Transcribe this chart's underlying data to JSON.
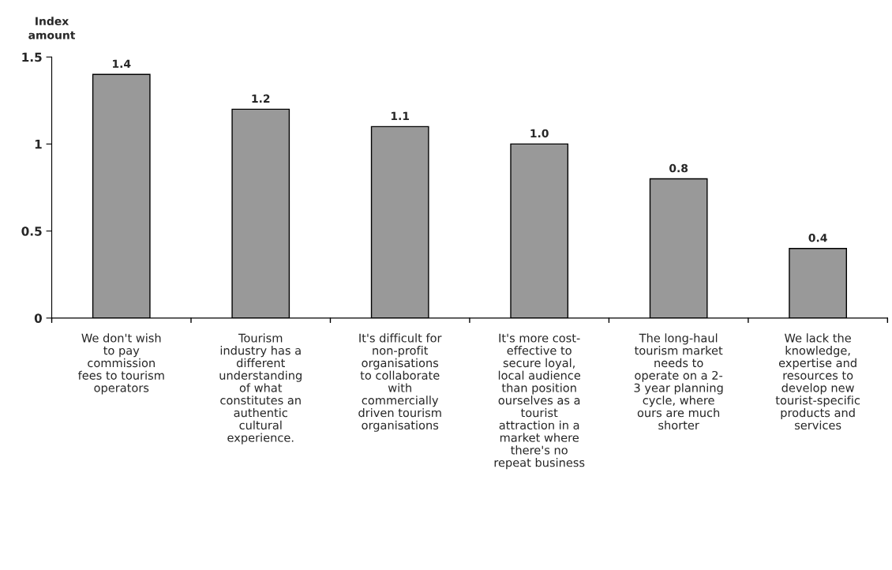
{
  "chart_data": {
    "type": "bar",
    "ylabel": "Index\namount",
    "categories": [
      "We don't wish\nto pay\ncommission\nfees to tourism\noperators",
      "Tourism\nindustry has a\ndifferent\nunderstanding\nof what\nconstitutes an\nauthentic\ncultural\nexperience.",
      "It's difficult for\nnon-profit\norganisations\nto collaborate\nwith\ncommercially\ndriven tourism\norganisations",
      "It's more cost-\neffective to\nsecure loyal,\nlocal audience\nthan position\nourselves as a\ntourist\nattraction in a\nmarket where\nthere's no\nrepeat business",
      "The long-haul\ntourism market\nneeds to\noperate on a 2-\n3 year planning\ncycle, where\nours are much\nshorter",
      "We lack the\nknowledge,\nexpertise and\nresources to\ndevelop new\ntourist-specific\nproducts and\nservices"
    ],
    "values": [
      1.4,
      1.2,
      1.1,
      1.0,
      0.8,
      0.4
    ],
    "value_labels": [
      "1.4",
      "1.2",
      "1.1",
      "1.0",
      "0.8",
      "0.4"
    ],
    "color": "#999999",
    "ylim": [
      0,
      1.5
    ],
    "yticks": [
      0,
      0.5,
      1,
      1.5
    ],
    "grid": false,
    "legend": false
  }
}
